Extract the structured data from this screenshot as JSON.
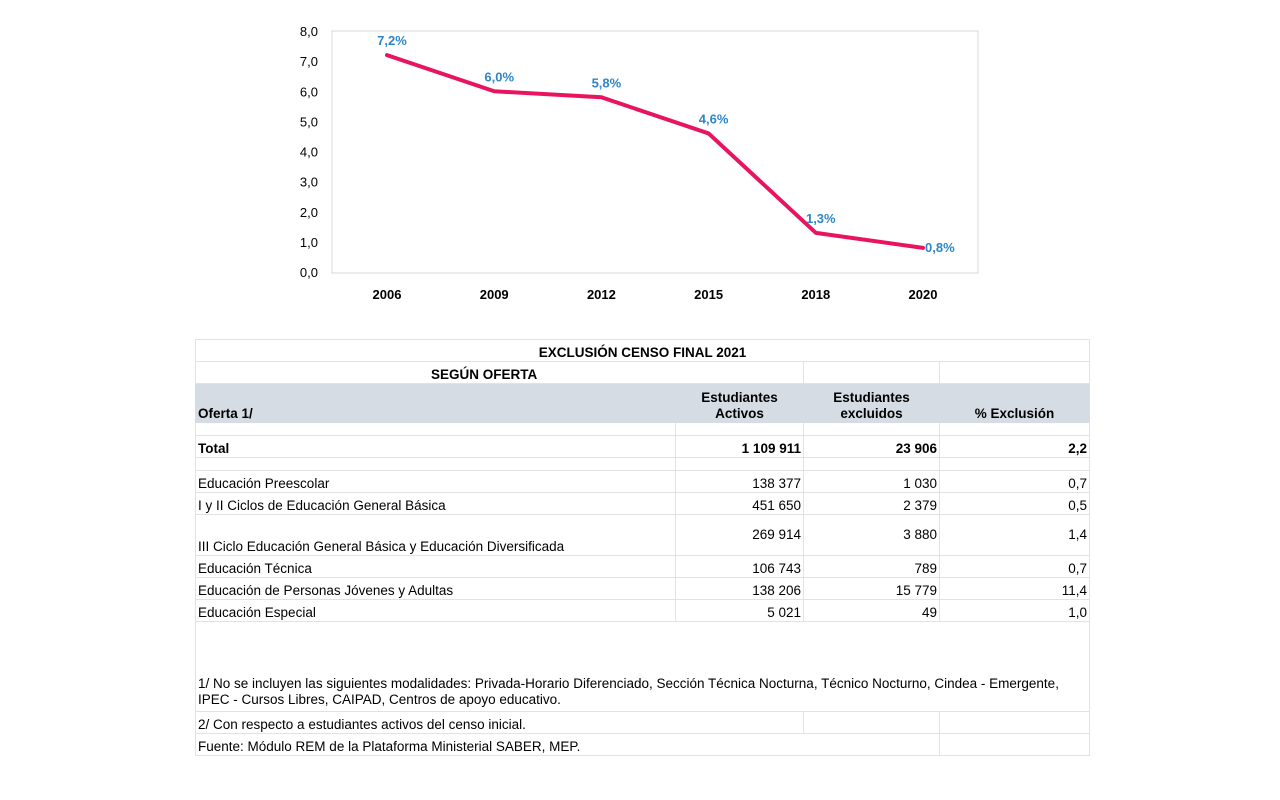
{
  "chart_data": {
    "type": "line",
    "x": [
      "2006",
      "2009",
      "2012",
      "2015",
      "2018",
      "2020"
    ],
    "series": [
      {
        "values": [
          7.2,
          6.0,
          5.8,
          4.6,
          1.3,
          0.8
        ],
        "labels": [
          "7,2%",
          "6,0%",
          "5,8%",
          "4,6%",
          "1,3%",
          "0,8%"
        ]
      }
    ],
    "yticks": [
      "0,0",
      "1,0",
      "2,0",
      "3,0",
      "4,0",
      "5,0",
      "6,0",
      "7,0",
      "8,0"
    ],
    "ylim": [
      0,
      8
    ],
    "grid": false,
    "line_color": "#e8145f",
    "label_color": "#2e86c8"
  },
  "table": {
    "title": "EXCLUSIÓN CENSO FINAL 2021",
    "subtitle": "SEGÚN OFERTA",
    "headers": {
      "oferta": "Oferta 1/",
      "activos": "Estudiantes Activos",
      "excluidos": "Estudiantes excluidos",
      "pct": "% Exclusión"
    },
    "total": {
      "label": "Total",
      "activos": "1 109 911",
      "excluidos": "23 906",
      "pct": "2,2"
    },
    "rows": [
      {
        "label": "Educación Preescolar",
        "activos": "138 377",
        "excluidos": "1 030",
        "pct": "0,7"
      },
      {
        "label": "I y II Ciclos de Educación General Básica",
        "activos": "451 650",
        "excluidos": "2 379",
        "pct": "0,5"
      },
      {
        "label": "III Ciclo Educación General Básica y Educación Diversificada",
        "activos": "269 914",
        "excluidos": "3 880",
        "pct": "1,4"
      },
      {
        "label": "Educación Técnica",
        "activos": "106 743",
        "excluidos": "789",
        "pct": "0,7"
      },
      {
        "label": "Educación de Personas Jóvenes y Adultas",
        "activos": "138 206",
        "excluidos": "15 779",
        "pct": "11,4"
      },
      {
        "label": "Educación Especial",
        "activos": "5 021",
        "excluidos": "49",
        "pct": "1,0"
      }
    ],
    "note1": "1/ No se incluyen las siguientes modalidades: Privada-Horario Diferenciado, Sección Técnica Nocturna, Técnico Nocturno, Cindea - Emergente, IPEC - Cursos Libres, CAIPAD, Centros de apoyo educativo.",
    "note2": "2/ Con respecto a estudiantes activos del censo inicial.",
    "source": "Fuente: Módulo REM de la Plataforma Ministerial SABER, MEP."
  }
}
